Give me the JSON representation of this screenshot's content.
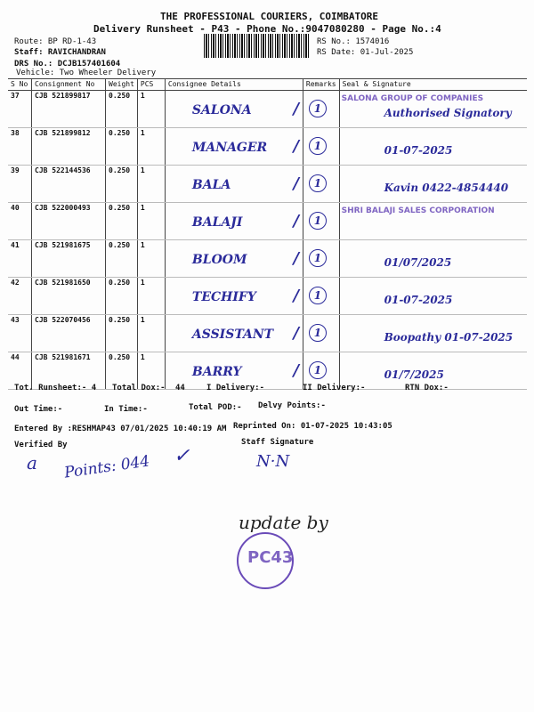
{
  "header": {
    "company": "THE PROFESSIONAL COURIERS, COIMBATORE",
    "title": "Delivery Runsheet - P43 - Phone No.:9047080280 - Page No.:4",
    "route": "Route: BP RD-1-43",
    "staff": "Staff: RAVICHANDRAN",
    "drs": "DRS No.: DCJB157401604",
    "vehicle": "Vehicle: Two Wheeler Delivery",
    "rs_no": "RS No.: 1574016",
    "rs_date": "RS Date: 01-Jul-2025"
  },
  "table": {
    "columns": [
      "S No",
      "Consignment No",
      "Weight",
      "PCS",
      "Consignee Details",
      "Remarks",
      "Seal & Signature"
    ],
    "rows": [
      {
        "sno": "37",
        "cn": "CJB 521899817",
        "wt": "0.250",
        "pcs": "1",
        "consignee": "SALONA",
        "seal": "SALONA GROUP OF COMPANIES",
        "sign": "Authorised Signatory"
      },
      {
        "sno": "38",
        "cn": "CJB 521899812",
        "wt": "0.250",
        "pcs": "1",
        "consignee": "MANAGER",
        "seal": "",
        "sign": "01-07-2025"
      },
      {
        "sno": "39",
        "cn": "CJB 522144536",
        "wt": "0.250",
        "pcs": "1",
        "consignee": "BALA",
        "seal": "",
        "sign": "Kavin 0422-4854440"
      },
      {
        "sno": "40",
        "cn": "CJB 522000493",
        "wt": "0.250",
        "pcs": "1",
        "consignee": "BALAJI",
        "seal": "SHRI BALAJI SALES CORPORATION",
        "sign": ""
      },
      {
        "sno": "41",
        "cn": "CJB 521981675",
        "wt": "0.250",
        "pcs": "1",
        "consignee": "BLOOM",
        "seal": "",
        "sign": "01/07/2025"
      },
      {
        "sno": "42",
        "cn": "CJB 521981650",
        "wt": "0.250",
        "pcs": "1",
        "consignee": "TECHIFY",
        "seal": "",
        "sign": "01-07-2025"
      },
      {
        "sno": "43",
        "cn": "CJB 522070456",
        "wt": "0.250",
        "pcs": "1",
        "consignee": "ASSISTANT",
        "seal": "",
        "sign": "Boopathy 01-07-2025"
      },
      {
        "sno": "44",
        "cn": "CJB 521981671",
        "wt": "0.250",
        "pcs": "1",
        "consignee": "BARRY",
        "seal": "",
        "sign": "01/7/2025"
      }
    ]
  },
  "footer": {
    "tot_runsheet": "Tot. Runsheet:- 4",
    "total_dox": "Total Dox:-",
    "total_dox_val": "44",
    "i_delivery": "I Delivery:-",
    "ii_delivery": "II Delivery:-",
    "rtn_dox": "RTN Dox:-",
    "out_time": "Out Time:-",
    "in_time": "In Time:-",
    "total_pod": "Total POD:-",
    "delvy_points": "Delvy Points:-",
    "entered_by": "Entered By :RESHMAP43 07/01/2025 10:40:19 AM",
    "reprinted": "Reprinted On: 01-07-2025 10:43:05",
    "verified_by": "Verified By",
    "staff_signature": "Staff Signature"
  },
  "handwriting": {
    "points": "Points: 044",
    "update": "update by",
    "stamp": "PC43",
    "remark_mark": "1"
  }
}
